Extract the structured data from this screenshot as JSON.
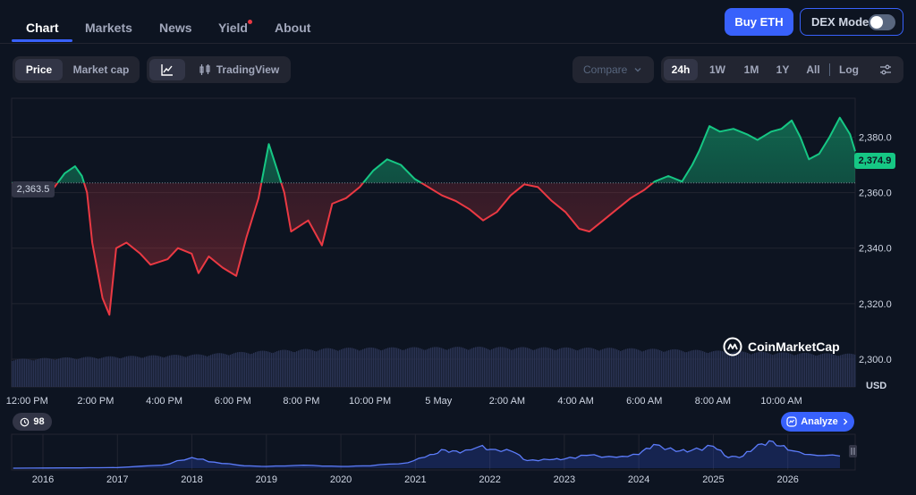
{
  "nav": {
    "tabs": [
      {
        "label": "Chart",
        "active": true
      },
      {
        "label": "Markets"
      },
      {
        "label": "News"
      },
      {
        "label": "Yield",
        "has_dot": true
      },
      {
        "label": "About"
      }
    ],
    "buy_label": "Buy ETH",
    "dex_label": "DEX Mode"
  },
  "toolbar": {
    "price_label": "Price",
    "marketcap_label": "Market cap",
    "tradingview_label": "TradingView",
    "compare_label": "Compare",
    "ranges": [
      "24h",
      "1W",
      "1M",
      "1Y",
      "All"
    ],
    "active_range": "24h",
    "log_label": "Log"
  },
  "chart_data": {
    "type": "line",
    "currency": "USD",
    "open_price_label": "2,363.5",
    "last_price_label": "2,374.9",
    "open_price": 2363.5,
    "last_price": 2374.9,
    "ylim": [
      2290,
      2394
    ],
    "y_ticks": [
      2300,
      2320,
      2340,
      2360,
      2380
    ],
    "y_tick_labels": [
      "2,300.0",
      "2,320.0",
      "2,340.0",
      "2,360.0",
      "2,380.0"
    ],
    "x_tick_labels": [
      "12:00 PM",
      "2:00 PM",
      "4:00 PM",
      "6:00 PM",
      "8:00 PM",
      "10:00 PM",
      "5 May",
      "2:00 AM",
      "4:00 AM",
      "6:00 AM",
      "8:00 AM",
      "10:00 AM"
    ],
    "x_tick_hours": [
      0,
      2,
      4,
      6,
      8,
      10,
      12,
      14,
      16,
      18,
      20,
      22
    ],
    "x_range_hours": [
      -0.45,
      24.15
    ],
    "price_series": [
      [
        -0.45,
        2363.5
      ],
      [
        0.8,
        2362
      ],
      [
        1.1,
        2367
      ],
      [
        1.4,
        2369.5
      ],
      [
        1.6,
        2366
      ],
      [
        1.75,
        2360
      ],
      [
        1.9,
        2342
      ],
      [
        2.2,
        2322
      ],
      [
        2.4,
        2316
      ],
      [
        2.6,
        2340
      ],
      [
        2.9,
        2342
      ],
      [
        3.3,
        2338
      ],
      [
        3.6,
        2334
      ],
      [
        4.1,
        2336
      ],
      [
        4.4,
        2340
      ],
      [
        4.8,
        2338
      ],
      [
        5.0,
        2331
      ],
      [
        5.3,
        2337
      ],
      [
        5.7,
        2333
      ],
      [
        6.1,
        2330
      ],
      [
        6.4,
        2344
      ],
      [
        6.75,
        2358
      ],
      [
        7.05,
        2377.5
      ],
      [
        7.3,
        2368
      ],
      [
        7.5,
        2360
      ],
      [
        7.7,
        2346
      ],
      [
        8.2,
        2350
      ],
      [
        8.6,
        2341
      ],
      [
        8.9,
        2356
      ],
      [
        9.3,
        2358
      ],
      [
        9.7,
        2362
      ],
      [
        10.1,
        2368
      ],
      [
        10.5,
        2372
      ],
      [
        10.9,
        2370
      ],
      [
        11.3,
        2365
      ],
      [
        11.7,
        2362
      ],
      [
        12.1,
        2359
      ],
      [
        12.5,
        2357
      ],
      [
        12.9,
        2354
      ],
      [
        13.3,
        2350
      ],
      [
        13.7,
        2353
      ],
      [
        14.1,
        2359
      ],
      [
        14.5,
        2363
      ],
      [
        14.9,
        2362
      ],
      [
        15.3,
        2357
      ],
      [
        15.7,
        2353
      ],
      [
        16.1,
        2347
      ],
      [
        16.4,
        2346
      ],
      [
        16.8,
        2350
      ],
      [
        17.2,
        2354
      ],
      [
        17.6,
        2358
      ],
      [
        18.0,
        2361
      ],
      [
        18.3,
        2364
      ],
      [
        18.7,
        2366
      ],
      [
        19.1,
        2364
      ],
      [
        19.4,
        2370
      ],
      [
        19.6,
        2375
      ],
      [
        19.9,
        2384
      ],
      [
        20.2,
        2382
      ],
      [
        20.6,
        2383
      ],
      [
        21.0,
        2381
      ],
      [
        21.3,
        2379
      ],
      [
        21.7,
        2382
      ],
      [
        22.0,
        2383
      ],
      [
        22.3,
        2386
      ],
      [
        22.55,
        2380
      ],
      [
        22.8,
        2372
      ],
      [
        23.1,
        2374
      ],
      [
        23.4,
        2380
      ],
      [
        23.7,
        2387
      ],
      [
        24.0,
        2381
      ],
      [
        24.15,
        2374.9
      ]
    ],
    "volume_series": [
      [
        -0.45,
        0.52
      ],
      [
        1,
        0.55
      ],
      [
        3,
        0.58
      ],
      [
        5,
        0.61
      ],
      [
        7,
        0.68
      ],
      [
        9,
        0.73
      ],
      [
        11,
        0.74
      ],
      [
        13,
        0.75
      ],
      [
        15,
        0.74
      ],
      [
        17,
        0.73
      ],
      [
        19,
        0.7
      ],
      [
        21,
        0.66
      ],
      [
        23,
        0.63
      ],
      [
        24.15,
        0.62
      ]
    ],
    "history": {
      "year_labels": [
        "2016",
        "2017",
        "2018",
        "2019",
        "2020",
        "2021",
        "2022",
        "2023",
        "2024",
        "2025",
        "2026"
      ],
      "year_start": 2016.0,
      "year_end": 2026.7,
      "series": [
        [
          2015.6,
          0.0
        ],
        [
          2016.5,
          0.01
        ],
        [
          2017.0,
          0.02
        ],
        [
          2017.6,
          0.1
        ],
        [
          2018.0,
          0.35
        ],
        [
          2018.3,
          0.2
        ],
        [
          2018.7,
          0.08
        ],
        [
          2019.0,
          0.06
        ],
        [
          2019.5,
          0.1
        ],
        [
          2020.0,
          0.06
        ],
        [
          2020.4,
          0.08
        ],
        [
          2020.9,
          0.18
        ],
        [
          2021.2,
          0.45
        ],
        [
          2021.4,
          0.6
        ],
        [
          2021.6,
          0.5
        ],
        [
          2021.9,
          0.75
        ],
        [
          2022.0,
          0.62
        ],
        [
          2022.3,
          0.55
        ],
        [
          2022.5,
          0.25
        ],
        [
          2022.8,
          0.28
        ],
        [
          2023.0,
          0.3
        ],
        [
          2023.3,
          0.42
        ],
        [
          2023.7,
          0.36
        ],
        [
          2024.0,
          0.45
        ],
        [
          2024.2,
          0.78
        ],
        [
          2024.5,
          0.55
        ],
        [
          2024.7,
          0.58
        ],
        [
          2025.0,
          0.72
        ],
        [
          2025.2,
          0.35
        ],
        [
          2025.4,
          0.4
        ],
        [
          2025.6,
          0.78
        ],
        [
          2025.8,
          0.88
        ],
        [
          2026.0,
          0.6
        ],
        [
          2026.3,
          0.45
        ],
        [
          2026.7,
          0.4
        ]
      ]
    }
  },
  "watermark": "CoinMarketCap",
  "history_badge": "98",
  "analyze_label": "Analyze",
  "colors": {
    "up": "#16c784",
    "down": "#ea3943",
    "accent": "#3861fb",
    "background": "#0d1421",
    "volume": "#2b3454"
  }
}
